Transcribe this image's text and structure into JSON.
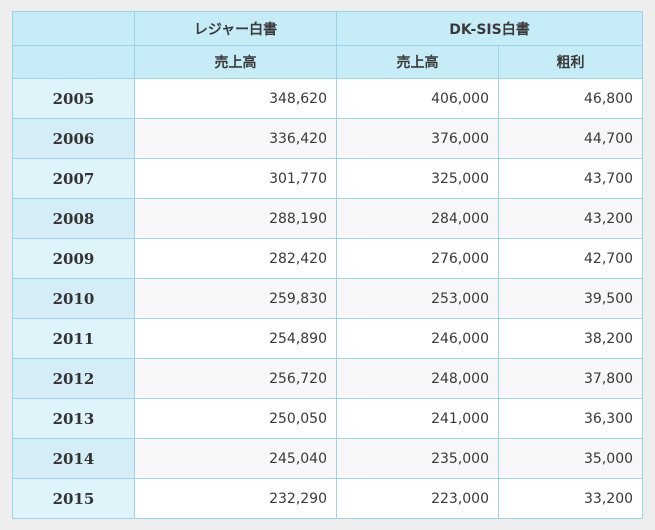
{
  "table": {
    "group_headers": [
      "レジャー白書",
      "DK-SIS白書"
    ],
    "sub_headers": [
      "売上高",
      "売上高",
      "粗利"
    ],
    "rows": [
      {
        "year": "2005",
        "leisure_sales": "348,620",
        "dksis_sales": "406,000",
        "dksis_profit": "46,800"
      },
      {
        "year": "2006",
        "leisure_sales": "336,420",
        "dksis_sales": "376,000",
        "dksis_profit": "44,700"
      },
      {
        "year": "2007",
        "leisure_sales": "301,770",
        "dksis_sales": "325,000",
        "dksis_profit": "43,700"
      },
      {
        "year": "2008",
        "leisure_sales": "288,190",
        "dksis_sales": "284,000",
        "dksis_profit": "43,200"
      },
      {
        "year": "2009",
        "leisure_sales": "282,420",
        "dksis_sales": "276,000",
        "dksis_profit": "42,700"
      },
      {
        "year": "2010",
        "leisure_sales": "259,830",
        "dksis_sales": "253,000",
        "dksis_profit": "39,500"
      },
      {
        "year": "2011",
        "leisure_sales": "254,890",
        "dksis_sales": "246,000",
        "dksis_profit": "38,200"
      },
      {
        "year": "2012",
        "leisure_sales": "256,720",
        "dksis_sales": "248,000",
        "dksis_profit": "37,800"
      },
      {
        "year": "2013",
        "leisure_sales": "250,050",
        "dksis_sales": "241,000",
        "dksis_profit": "36,300"
      },
      {
        "year": "2014",
        "leisure_sales": "245,040",
        "dksis_sales": "235,000",
        "dksis_profit": "35,000"
      },
      {
        "year": "2015",
        "leisure_sales": "232,290",
        "dksis_sales": "223,000",
        "dksis_profit": "33,200"
      }
    ]
  },
  "colors": {
    "header_bg": "#c5ecf7",
    "year_cell_bg": "#dff3fa",
    "border": "#9ed3e6",
    "stripe": "#f7f7f7"
  }
}
